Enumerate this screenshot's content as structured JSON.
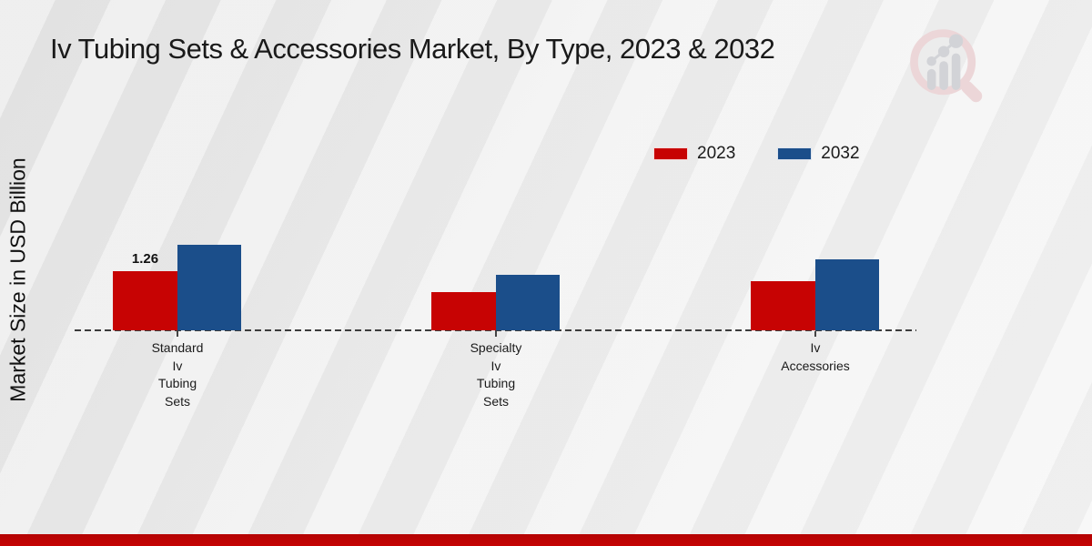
{
  "page": {
    "title": "Iv Tubing Sets & Accessories Market, By Type, 2023 & 2032",
    "y_axis_label": "Market Size in USD Billion"
  },
  "legend": {
    "items": [
      {
        "label": "2023",
        "color": "#c70303"
      },
      {
        "label": "2032",
        "color": "#1b4e8a"
      }
    ]
  },
  "icons": {
    "watermark": "magnifier-bar-chart-watermark-icon"
  },
  "colors": {
    "series_2023": "#c70303",
    "series_2032": "#1b4e8a",
    "footer_bar": "#c20404",
    "title_text": "#1a1a1a",
    "baseline": "#3c3c3c",
    "watermark_pink": "#ecd5d7",
    "watermark_gray": "#d1d2d6"
  },
  "chart_data": {
    "type": "bar",
    "title": "Iv Tubing Sets & Accessories Market, By Type, 2023 & 2032",
    "xlabel": "",
    "ylabel": "Market Size in USD Billion",
    "ylim": [
      0,
      2.0
    ],
    "grid": false,
    "legend_position": "top-right",
    "baseline_style": "dashed",
    "categories": [
      "Standard Iv Tubing Sets",
      "Specialty Iv Tubing Sets",
      "Iv Accessories"
    ],
    "category_label_lines": [
      [
        "Standard",
        "Iv",
        "Tubing",
        "Sets"
      ],
      [
        "Specialty",
        "Iv",
        "Tubing",
        "Sets"
      ],
      [
        "Iv",
        "Accessories"
      ]
    ],
    "series": [
      {
        "name": "2023",
        "color": "#c70303",
        "values": [
          1.26,
          0.81,
          1.05
        ],
        "data_labels": [
          "1.26",
          "",
          ""
        ]
      },
      {
        "name": "2032",
        "color": "#1b4e8a",
        "values": [
          1.82,
          1.18,
          1.51
        ],
        "data_labels": [
          "",
          "",
          ""
        ]
      }
    ]
  }
}
